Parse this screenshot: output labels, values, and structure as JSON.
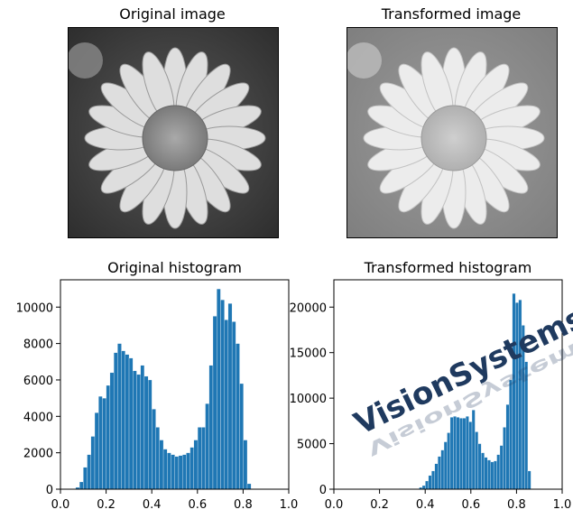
{
  "panels": {
    "original_image_title": "Original image",
    "transformed_image_title": "Transformed image"
  },
  "watermark": {
    "text": "VisionSystems.ir",
    "color": "#1f3a5f"
  },
  "chart_data": [
    {
      "type": "bar",
      "title": "Original histogram",
      "xlabel": "",
      "ylabel": "",
      "xlim": [
        0.0,
        1.0
      ],
      "ylim": [
        0,
        11500
      ],
      "xticks": [
        "0.0",
        "0.2",
        "0.4",
        "0.6",
        "0.8",
        "1.0"
      ],
      "yticks": [
        "0",
        "2000",
        "4000",
        "6000",
        "8000",
        "10000"
      ],
      "color": "#1f77b4",
      "bin_start": 0.05,
      "bin_width": 0.0167,
      "values": [
        0,
        100,
        400,
        1200,
        1900,
        2900,
        4200,
        5100,
        5000,
        5700,
        6400,
        7500,
        8000,
        7600,
        7400,
        7200,
        6500,
        6300,
        6800,
        6200,
        6000,
        4400,
        3400,
        2700,
        2200,
        2000,
        1900,
        1800,
        1850,
        1900,
        2000,
        2300,
        2700,
        3400,
        3400,
        4700,
        6800,
        9500,
        11000,
        10400,
        9300,
        10200,
        9200,
        8000,
        5800,
        2700,
        300
      ]
    },
    {
      "type": "bar",
      "title": "Transformed histogram",
      "xlabel": "",
      "ylabel": "",
      "xlim": [
        0.0,
        1.0
      ],
      "ylim": [
        0,
        23000
      ],
      "xticks": [
        "0.0",
        "0.2",
        "0.4",
        "0.6",
        "0.8",
        "1.0"
      ],
      "yticks": [
        "0",
        "5000",
        "10000",
        "15000",
        "20000"
      ],
      "color": "#1f77b4",
      "bin_start": 0.36,
      "bin_width": 0.0136,
      "values": [
        0,
        200,
        400,
        900,
        1500,
        2000,
        2800,
        3600,
        4300,
        5200,
        6200,
        7900,
        8000,
        7900,
        7800,
        7800,
        8000,
        7400,
        8700,
        6300,
        5000,
        4000,
        3500,
        3200,
        3000,
        3100,
        3800,
        4800,
        6800,
        9300,
        12000,
        21500,
        20500,
        20800,
        18000,
        14000,
        2000
      ]
    }
  ]
}
